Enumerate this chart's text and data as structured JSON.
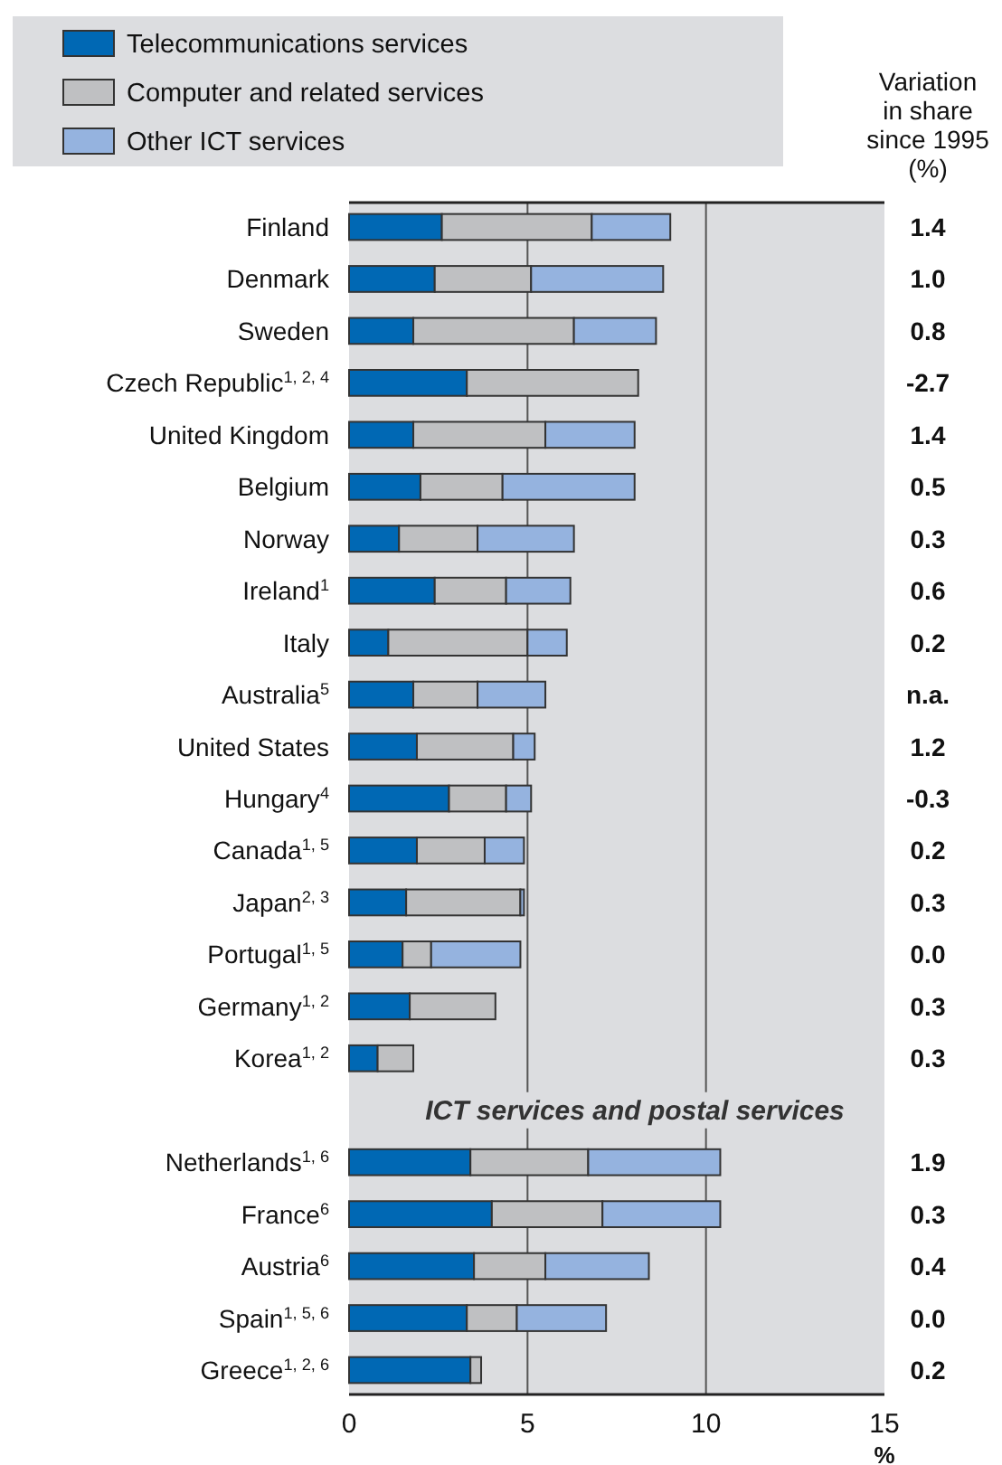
{
  "chart_data": {
    "type": "bar",
    "orientation": "horizontal",
    "stacked": true,
    "categories": [
      "Finland",
      "Denmark",
      "Sweden",
      "Czech Republic$^{1, 2, 4}$",
      "United Kingdom",
      "Belgium",
      "Norway",
      "Ireland$^{1}$",
      "Italy",
      "Australia$^{5}$",
      "United States",
      "Hungary$^{4}$",
      "Canada$^{1, 5}$",
      "Japan$^{2, 3}$",
      "Portugal$^{1, 5}$",
      "Germany$^{1, 2}$",
      "Korea$^{1, 2}$",
      null,
      "Netherlands$^{1, 6}$",
      "France$^{6}$",
      "Austria$^{6}$",
      "Spain$^{1, 5, 6}$",
      "Greece$^{1, 2, 6}$"
    ],
    "series": [
      {
        "name": "Telecommunications services",
        "color": "#0068b4",
        "values": [
          2.6,
          2.4,
          1.8,
          3.3,
          1.8,
          2.0,
          1.4,
          2.4,
          1.1,
          1.8,
          1.9,
          2.8,
          1.9,
          1.6,
          1.5,
          1.7,
          0.8,
          null,
          3.4,
          4.0,
          3.5,
          3.3,
          3.4
        ]
      },
      {
        "name": "Computer and related services",
        "color": "#bfc0c2",
        "values": [
          4.2,
          2.7,
          4.5,
          4.8,
          3.7,
          2.3,
          2.2,
          2.0,
          3.9,
          1.8,
          2.7,
          1.6,
          1.9,
          3.2,
          0.8,
          2.4,
          1.0,
          null,
          3.3,
          3.1,
          2.0,
          1.4,
          0.3
        ]
      },
      {
        "name": "Other ICT services",
        "color": "#95b3df",
        "values": [
          2.2,
          3.7,
          2.3,
          null,
          2.5,
          3.7,
          2.7,
          1.8,
          1.1,
          1.9,
          0.6,
          0.7,
          1.1,
          0.1,
          2.5,
          null,
          null,
          null,
          3.7,
          3.3,
          2.9,
          2.5,
          null
        ]
      }
    ],
    "xlim": [
      0,
      15
    ],
    "xticks": [
      0,
      5,
      10,
      15
    ],
    "xlabel": "%",
    "grid": "x",
    "legend": "top left",
    "annotations": [
      "Variation\nin share\nsince 1995\n(%)",
      "ICT services and postal services",
      "1.4",
      "1.0",
      "0.8",
      "-2.7",
      "1.4",
      "0.5",
      "0.3",
      "0.6",
      "0.2",
      "n.a.",
      "1.2",
      "-0.3",
      "0.2",
      "0.3",
      "0.0",
      "0.3",
      "0.3",
      "1.9",
      "0.3",
      "0.4",
      "0.0",
      "0.2"
    ]
  }
}
